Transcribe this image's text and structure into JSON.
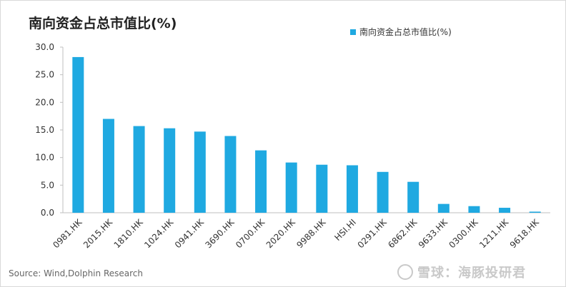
{
  "title": "南向资金占总市值比(%)",
  "source": "Source: Wind,Dolphin Research",
  "brand": "雪球：海豚投研君",
  "colors": {
    "bar": "#1fa9e1",
    "axis": "#bfbfbf",
    "text": "#333333"
  },
  "chart_data": {
    "type": "bar",
    "title": "南向资金占总市值比(%)",
    "xlabel": "",
    "ylabel": "",
    "ylim": [
      0,
      30
    ],
    "yticks": [
      "0.0",
      "5.0",
      "10.0",
      "15.0",
      "20.0",
      "25.0",
      "30.0"
    ],
    "grid": false,
    "legend": "top-right",
    "categories": [
      "0981.HK",
      "2015.HK",
      "1810.HK",
      "1024.HK",
      "0941.HK",
      "3690.HK",
      "0700.HK",
      "2020.HK",
      "9988.HK",
      "HSI.HI",
      "0291.HK",
      "6862.HK",
      "9633.HK",
      "0300.HK",
      "1211.HK",
      "9618.HK"
    ],
    "series": [
      {
        "name": "南向资金占总市值比(%)",
        "values": [
          28.2,
          17.0,
          15.7,
          15.3,
          14.7,
          13.9,
          11.3,
          9.1,
          8.7,
          8.6,
          7.4,
          5.6,
          1.6,
          1.2,
          0.9,
          0.2
        ]
      }
    ]
  }
}
